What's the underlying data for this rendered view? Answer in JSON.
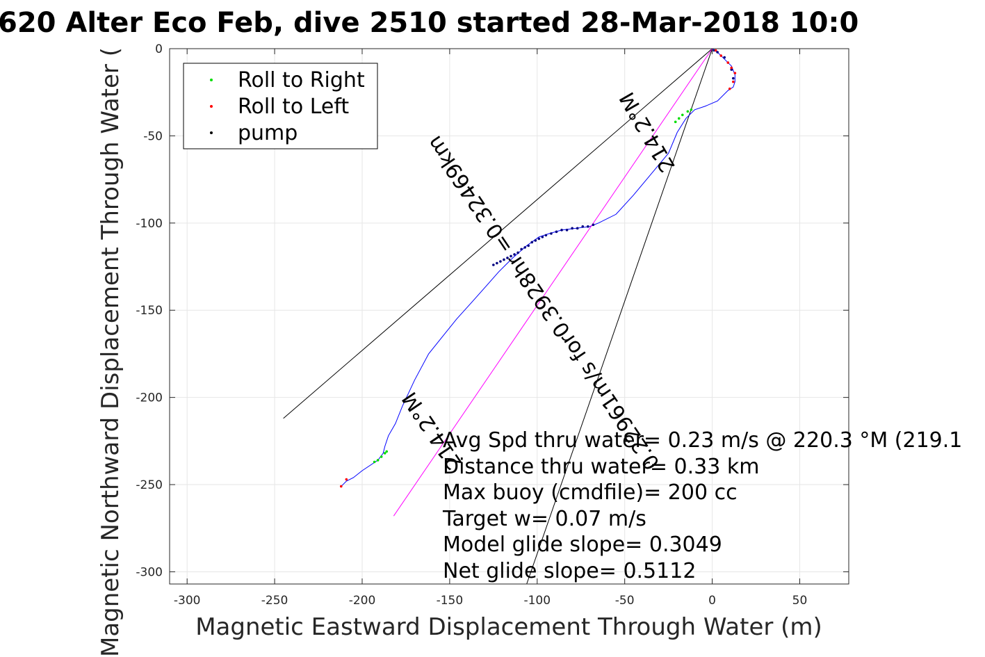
{
  "chart_data": {
    "type": "line",
    "title": "620 Alter Eco Feb, dive 2510 started 28-Mar-2018 10:0",
    "xlabel": "Magnetic Eastward Displacement Through Water (m)",
    "ylabel": "Magnetic Northward Displacement Through Water (",
    "xlim": [
      -310,
      78
    ],
    "ylim": [
      -307,
      0
    ],
    "xticks": [
      -300,
      -250,
      -200,
      -150,
      -100,
      -50,
      0,
      50
    ],
    "yticks": [
      0,
      -50,
      -100,
      -150,
      -200,
      -250,
      -300
    ],
    "grid": true,
    "legend": {
      "placement": "top-left",
      "entries": [
        {
          "name": "Roll to Right",
          "color": "#00dd00"
        },
        {
          "name": "Roll to Left",
          "color": "#ff0000"
        },
        {
          "name": "pump",
          "color": "#000080"
        }
      ]
    },
    "series": [
      {
        "name": "track",
        "color": "#0000ff",
        "x": [
          0,
          4,
          8,
          11,
          13,
          13,
          12,
          9,
          3,
          -4,
          -10,
          -15,
          -20,
          -25,
          -35,
          -45,
          -55,
          -65,
          -70,
          -78,
          -86,
          -93,
          -99,
          -106,
          -114,
          -122,
          -129,
          -137,
          -146,
          -154,
          -162,
          -170,
          -177,
          -181,
          -185,
          -187,
          -188,
          -191,
          -200,
          -205,
          -209,
          -212
        ],
        "y": [
          0,
          -3,
          -7,
          -10,
          -15,
          -19,
          -22,
          -24,
          -30,
          -33,
          -35,
          -40,
          -48,
          -60,
          -72,
          -84,
          -95,
          -100,
          -102,
          -103,
          -104,
          -106,
          -108,
          -113,
          -120,
          -128,
          -136,
          -145,
          -155,
          -165,
          -175,
          -190,
          -205,
          -215,
          -222,
          -228,
          -232,
          -236,
          -242,
          -246,
          -248,
          -251
        ]
      },
      {
        "name": "heading-line",
        "color": "#ff00ff",
        "x": [
          0,
          -182
        ],
        "y": [
          0,
          -268
        ]
      }
    ],
    "reference_lines": [
      {
        "x": [
          0,
          -245
        ],
        "y": [
          0,
          -212
        ],
        "color": "#000000"
      },
      {
        "x": [
          0,
          -106
        ],
        "y": [
          0,
          -307
        ],
        "color": "#000000"
      }
    ],
    "markers": {
      "roll_right": {
        "color": "#00dd00",
        "x": [
          -12,
          -14,
          -17,
          -19,
          -21,
          -186,
          -187,
          -189,
          -191,
          -193
        ],
        "y": [
          -35,
          -36,
          -38,
          -40,
          -42,
          -231,
          -232,
          -234,
          -236,
          -237
        ]
      },
      "roll_left": {
        "color": "#ff0000",
        "x": [
          2,
          5,
          9,
          11,
          13,
          12,
          10,
          -209,
          -212
        ],
        "y": [
          -1,
          -4,
          -8,
          -11,
          -14,
          -19,
          -23,
          -247,
          -251
        ]
      },
      "pump": {
        "color": "#000080",
        "x": [
          -68,
          -71,
          -74,
          -77,
          -80,
          -83,
          -86,
          -89,
          -92,
          -95,
          -97,
          -99,
          -101,
          -103,
          -105,
          -107,
          -109,
          -111,
          -113,
          -115,
          -117,
          -119,
          -121,
          -123,
          -125,
          1,
          3,
          7,
          11,
          12
        ],
        "y": [
          -101,
          -102,
          -102,
          -103,
          -103,
          -104,
          -104,
          -105,
          -106,
          -107,
          -108,
          -109,
          -110,
          -111,
          -113,
          -114,
          -115,
          -117,
          -118,
          -119,
          -120,
          -121,
          -122,
          -123,
          -124,
          -1,
          -2,
          -5,
          -12,
          -17
        ]
      }
    },
    "text_annotations": {
      "heading_top": "214.2°M",
      "speed_label": "0.22961m/s for0.3928hr =0.32469km",
      "heading_bottom": "214.2°M",
      "stats": [
        "Avg Spd thru water=  0.23 m/s @ 220.3 °M (219.1",
        "Distance thru water=  0.33 km",
        "Max buoy (cmdfile)= 200 cc",
        "Target w= 0.07 m/s",
        "Model glide slope= 0.3049",
        "Net glide slope= 0.5112"
      ]
    }
  }
}
